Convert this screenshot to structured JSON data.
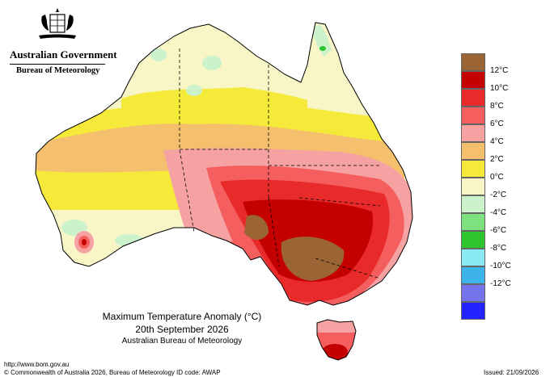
{
  "agency": {
    "line1": "Australian Government",
    "line2": "Bureau of Meteorology"
  },
  "icons": {
    "crest": "coat-of-arms-icon"
  },
  "legend": {
    "items": [
      {
        "label": "",
        "color": "#9b6434"
      },
      {
        "label": "12°C",
        "color": "#c40000"
      },
      {
        "label": "10°C",
        "color": "#e82a2a"
      },
      {
        "label": "8°C",
        "color": "#f45e5e"
      },
      {
        "label": "6°C",
        "color": "#f7a2a2"
      },
      {
        "label": "4°C",
        "color": "#f4c06e"
      },
      {
        "label": "2°C",
        "color": "#f5ea3a"
      },
      {
        "label": "0°C",
        "color": "#f8f6c6"
      },
      {
        "label": "-2°C",
        "color": "#ccf2cc"
      },
      {
        "label": "-4°C",
        "color": "#7fe07f"
      },
      {
        "label": "-6°C",
        "color": "#2dc42d"
      },
      {
        "label": "-8°C",
        "color": "#8aeaf4"
      },
      {
        "label": "-10°C",
        "color": "#3cb4ea"
      },
      {
        "label": "-12°C",
        "color": "#7474ee"
      },
      {
        "label": "",
        "color": "#2323ff"
      }
    ]
  },
  "caption": {
    "title": "Maximum Temperature Anomaly (°C)",
    "date": "20th September 2026",
    "org": "Australian Bureau of Meteorology"
  },
  "footer": {
    "url": "http://www.bom.gov.au",
    "copyright": "© Commonwealth of Australia 2026, Bureau of Meteorology",
    "id_code": "ID code: AWAP",
    "issued": "Issued: 21/09/2026"
  }
}
